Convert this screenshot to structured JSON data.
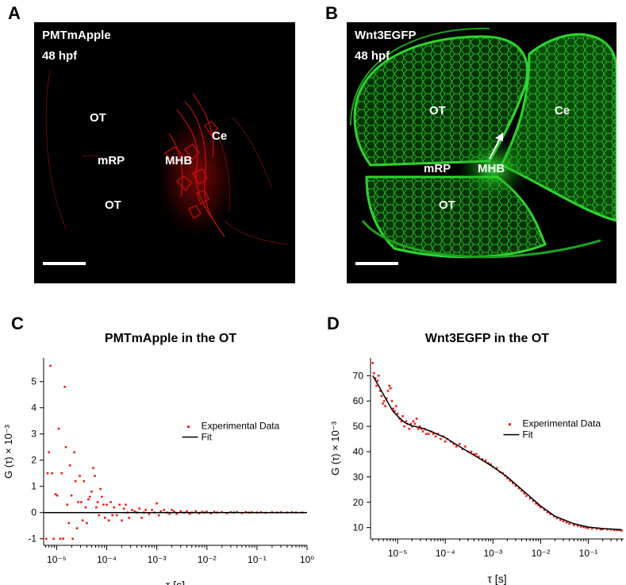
{
  "panels": {
    "A": {
      "letter": "A",
      "title1": "PMTmApple",
      "title2": "48 hpf",
      "labels": {
        "ot_top": "OT",
        "mrp": "mRP",
        "mhb": "MHB",
        "ce": "Ce",
        "ot_bottom": "OT"
      }
    },
    "B": {
      "letter": "B",
      "title1": "Wnt3EGFP",
      "title2": "48 hpf",
      "labels": {
        "ot_top": "OT",
        "ce": "Ce",
        "mrp": "mRP",
        "mhb": "MHB",
        "ot_bottom": "OT"
      }
    },
    "C": {
      "letter": "C"
    },
    "D": {
      "letter": "D"
    }
  },
  "colors": {
    "red_signal": "#e01010",
    "green_signal": "#22e622",
    "data_points": "#ee1c1c",
    "fit_line": "#000000"
  },
  "chart_data": [
    {
      "panel": "C",
      "type": "scatter",
      "title": "PMTmApple in the OT",
      "xlabel": "τ [s]",
      "ylabel": "G (τ) × 10⁻³",
      "x_scale": "log",
      "xlim": [
        5.5e-06,
        1
      ],
      "ylim": [
        -1.25,
        5.9
      ],
      "xticks": [
        "10⁻⁵",
        "10⁻⁴",
        "10⁻³",
        "10⁻²",
        "10⁻¹",
        "10⁰"
      ],
      "yticks": [
        -1,
        0,
        1,
        2,
        3,
        4,
        5
      ],
      "legend": {
        "placement": "right-middle",
        "entries": [
          "Experimental Data",
          "Fit"
        ]
      },
      "series": [
        {
          "name": "Experimental Data",
          "marker": "point",
          "points": [
            [
              6.2e-06,
              -1
            ],
            [
              6.6e-06,
              1.5
            ],
            [
              7e-06,
              2.3
            ],
            [
              7.5e-06,
              5.6
            ],
            [
              8.1e-06,
              1.5
            ],
            [
              8.7e-06,
              -1
            ],
            [
              9.5e-06,
              0.7
            ],
            [
              1.03e-05,
              0.65
            ],
            [
              1.1e-05,
              3.2
            ],
            [
              1.18e-05,
              -1
            ],
            [
              1.26e-05,
              1.5
            ],
            [
              1.35e-05,
              -1
            ],
            [
              1.45e-05,
              4.8
            ],
            [
              1.53e-05,
              2.5
            ],
            [
              1.63e-05,
              0.3
            ],
            [
              1.75e-05,
              -0.4
            ],
            [
              1.85e-05,
              1.8
            ],
            [
              1.98e-05,
              0.65
            ],
            [
              2.1e-05,
              -1
            ],
            [
              2.25e-05,
              2.3
            ],
            [
              2.38e-05,
              1.2
            ],
            [
              2.55e-05,
              -0.6
            ],
            [
              2.7e-05,
              0.4
            ],
            [
              2.9e-05,
              1.4
            ],
            [
              3.1e-05,
              0.4
            ],
            [
              3.3e-05,
              -0.3
            ],
            [
              3.5e-05,
              1.2
            ],
            [
              3.8e-05,
              0.2
            ],
            [
              4e-05,
              -0.4
            ],
            [
              4.3e-05,
              0.5
            ],
            [
              4.6e-05,
              0.6
            ],
            [
              5e-05,
              0.8
            ],
            [
              5.4e-05,
              1.7
            ],
            [
              5.8e-05,
              1.4
            ],
            [
              6.2e-05,
              0.2
            ],
            [
              6.6e-05,
              0.4
            ],
            [
              7e-05,
              -0.1
            ],
            [
              7.5e-05,
              0.9
            ],
            [
              8e-05,
              0.6
            ],
            [
              8.6e-05,
              0.3
            ],
            [
              9.2e-05,
              -0.2
            ],
            [
              0.0001,
              0.3
            ],
            [
              0.00011,
              -0.3
            ],
            [
              0.00012,
              0.4
            ],
            [
              0.00013,
              -0.1
            ],
            [
              0.00014,
              0.2
            ],
            [
              0.00016,
              -0.1
            ],
            [
              0.00018,
              0.3
            ],
            [
              0.0002,
              -0.3
            ],
            [
              0.00022,
              0.15
            ],
            [
              0.00024,
              0.3
            ],
            [
              0.00026,
              0.0
            ],
            [
              0.00028,
              -0.2
            ],
            [
              0.00032,
              0.1
            ],
            [
              0.00036,
              0.05
            ],
            [
              0.0004,
              0.0
            ],
            [
              0.00045,
              0.15
            ],
            [
              0.0005,
              -0.2
            ],
            [
              0.00055,
              0.0
            ],
            [
              0.0006,
              0.1
            ],
            [
              0.0007,
              -0.05
            ],
            [
              0.0008,
              0.1
            ],
            [
              0.0009,
              0.0
            ],
            [
              0.001,
              0.35
            ],
            [
              0.0011,
              -0.1
            ],
            [
              0.0012,
              0.05
            ],
            [
              0.0014,
              0.1
            ],
            [
              0.0016,
              0.0
            ],
            [
              0.0018,
              -0.05
            ],
            [
              0.002,
              0.1
            ],
            [
              0.0022,
              0.05
            ],
            [
              0.0025,
              -0.05
            ],
            [
              0.003,
              0.05
            ],
            [
              0.0035,
              0.0
            ],
            [
              0.004,
              0.05
            ],
            [
              0.0045,
              -0.05
            ],
            [
              0.005,
              0.0
            ],
            [
              0.006,
              0.05
            ],
            [
              0.007,
              -0.03
            ],
            [
              0.008,
              0.03
            ],
            [
              0.009,
              0.0
            ],
            [
              0.01,
              0.03
            ],
            [
              0.012,
              -0.03
            ],
            [
              0.014,
              0.03
            ],
            [
              0.016,
              0.0
            ],
            [
              0.02,
              0.02
            ],
            [
              0.025,
              -0.02
            ],
            [
              0.03,
              0.02
            ],
            [
              0.035,
              0.0
            ],
            [
              0.04,
              0.02
            ],
            [
              0.05,
              -0.02
            ],
            [
              0.06,
              0.02
            ],
            [
              0.07,
              0.0
            ],
            [
              0.08,
              0.01
            ],
            [
              0.1,
              0.0
            ],
            [
              0.12,
              0.01
            ],
            [
              0.15,
              -0.01
            ],
            [
              0.2,
              0.01
            ],
            [
              0.25,
              0.0
            ],
            [
              0.3,
              0.01
            ],
            [
              0.4,
              0.0
            ],
            [
              0.5,
              0.01
            ],
            [
              0.6,
              0.0
            ],
            [
              0.8,
              0.0
            ]
          ]
        },
        {
          "name": "Fit",
          "marker": "line",
          "points": [
            [
              5.5e-06,
              0
            ],
            [
              1,
              0
            ]
          ]
        }
      ]
    },
    {
      "panel": "D",
      "type": "scatter",
      "title": "Wnt3EGFP in the OT",
      "xlabel": "τ [s]",
      "ylabel": "G (τ) × 10⁻³",
      "x_scale": "log",
      "xlim": [
        2.7e-06,
        0.55
      ],
      "ylim": [
        5.5,
        77
      ],
      "xticks": [
        "10⁻⁵",
        "10⁻⁴",
        "10⁻³",
        "10⁻²",
        "10⁻¹"
      ],
      "yticks": [
        10,
        20,
        30,
        40,
        50,
        60,
        70
      ],
      "legend": {
        "placement": "right-middle",
        "entries": [
          "Experimental Data",
          "Fit"
        ]
      },
      "series": [
        {
          "name": "Experimental Data",
          "marker": "point",
          "points": [
            [
              3e-06,
              75
            ],
            [
              3.2e-06,
              71
            ],
            [
              3.4e-06,
              69
            ],
            [
              3.6e-06,
              66
            ],
            [
              3.8e-06,
              68
            ],
            [
              4e-06,
              70
            ],
            [
              4.3e-06,
              64
            ],
            [
              4.6e-06,
              62
            ],
            [
              4.9e-06,
              59
            ],
            [
              5.2e-06,
              60
            ],
            [
              5.5e-06,
              58
            ],
            [
              5.9e-06,
              61
            ],
            [
              6.3e-06,
              64
            ],
            [
              6.7e-06,
              66
            ],
            [
              7.1e-06,
              65
            ],
            [
              7.6e-06,
              60
            ],
            [
              8.1e-06,
              57
            ],
            [
              8.7e-06,
              56
            ],
            [
              9.3e-06,
              58
            ],
            [
              1e-05,
              55
            ],
            [
              1.1e-05,
              53
            ],
            [
              1.2e-05,
              52
            ],
            [
              1.28e-05,
              54
            ],
            [
              1.38e-05,
              50
            ],
            [
              1.5e-05,
              52
            ],
            [
              1.6e-05,
              51
            ],
            [
              1.75e-05,
              49
            ],
            [
              1.9e-05,
              51
            ],
            [
              2e-05,
              50
            ],
            [
              2.15e-05,
              52
            ],
            [
              2.3e-05,
              51
            ],
            [
              2.5e-05,
              53
            ],
            [
              2.7e-05,
              49
            ],
            [
              2.9e-05,
              50
            ],
            [
              3.1e-05,
              49
            ],
            [
              3.4e-05,
              48
            ],
            [
              3.7e-05,
              49
            ],
            [
              4e-05,
              47
            ],
            [
              4.5e-05,
              47
            ],
            [
              5e-05,
              48
            ],
            [
              5.6e-05,
              47
            ],
            [
              6.3e-05,
              46
            ],
            [
              7e-05,
              47
            ],
            [
              8e-05,
              45
            ],
            [
              9e-05,
              46
            ],
            [
              0.0001,
              44
            ],
            [
              0.00011,
              45
            ],
            [
              0.00013,
              44
            ],
            [
              0.00015,
              43
            ],
            [
              0.00017,
              42
            ],
            [
              0.0002,
              43
            ],
            [
              0.00023,
              41
            ],
            [
              0.00026,
              42
            ],
            [
              0.0003,
              40
            ],
            [
              0.00035,
              40
            ],
            [
              0.0004,
              39
            ],
            [
              0.00045,
              39
            ],
            [
              0.0005,
              38
            ],
            [
              0.0006,
              37
            ],
            [
              0.0007,
              36.5
            ],
            [
              0.0008,
              35.5
            ],
            [
              0.0009,
              35
            ],
            [
              0.001,
              34
            ],
            [
              0.0012,
              33.5
            ],
            [
              0.0014,
              32
            ],
            [
              0.0016,
              31.5
            ],
            [
              0.0018,
              30.5
            ],
            [
              0.002,
              29.5
            ],
            [
              0.0023,
              28.5
            ],
            [
              0.0026,
              27.5
            ],
            [
              0.003,
              26.5
            ],
            [
              0.0035,
              25.5
            ],
            [
              0.004,
              24.5
            ],
            [
              0.0045,
              23.5
            ],
            [
              0.005,
              22.5
            ],
            [
              0.006,
              21.5
            ],
            [
              0.007,
              20.5
            ],
            [
              0.008,
              19.5
            ],
            [
              0.009,
              18.8
            ],
            [
              0.01,
              18
            ],
            [
              0.012,
              17
            ],
            [
              0.014,
              16
            ],
            [
              0.016,
              15.3
            ],
            [
              0.019,
              14.5
            ],
            [
              0.022,
              13.7
            ],
            [
              0.026,
              13
            ],
            [
              0.03,
              12.5
            ],
            [
              0.035,
              12
            ],
            [
              0.04,
              11.5
            ],
            [
              0.05,
              11
            ],
            [
              0.06,
              10.7
            ],
            [
              0.07,
              10.4
            ],
            [
              0.08,
              10.2
            ],
            [
              0.09,
              10
            ],
            [
              0.1,
              9.8
            ],
            [
              0.12,
              9.6
            ],
            [
              0.15,
              9.5
            ],
            [
              0.18,
              9.3
            ],
            [
              0.2,
              9.4
            ],
            [
              0.25,
              9.3
            ],
            [
              0.3,
              9.2
            ],
            [
              0.35,
              9.0
            ],
            [
              0.4,
              9.0
            ],
            [
              0.45,
              9.0
            ],
            [
              0.5,
              8.8
            ]
          ]
        },
        {
          "name": "Fit",
          "marker": "line",
          "points": [
            [
              3e-06,
              70
            ],
            [
              4e-06,
              66
            ],
            [
              6e-06,
              60
            ],
            [
              8e-06,
              56
            ],
            [
              1e-05,
              54
            ],
            [
              1.4e-05,
              51.5
            ],
            [
              2e-05,
              50.2
            ],
            [
              3e-05,
              49.5
            ],
            [
              5e-05,
              48
            ],
            [
              0.0001,
              45.5
            ],
            [
              0.0002,
              42
            ],
            [
              0.0005,
              37.5
            ],
            [
              0.001,
              34
            ],
            [
              0.002,
              30
            ],
            [
              0.005,
              23.5
            ],
            [
              0.01,
              18.5
            ],
            [
              0.02,
              14.5
            ],
            [
              0.05,
              11.5
            ],
            [
              0.1,
              10.2
            ],
            [
              0.2,
              9.6
            ],
            [
              0.5,
              9.2
            ]
          ]
        }
      ]
    }
  ]
}
